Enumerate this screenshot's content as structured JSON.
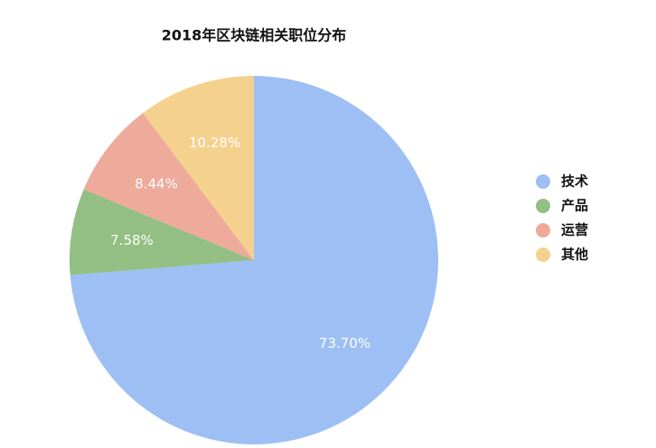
{
  "chart_data": {
    "type": "pie",
    "title": "2018年区块链相关职位分布",
    "categories": [
      "技术",
      "产品",
      "运营",
      "其他"
    ],
    "values": [
      73.7,
      7.58,
      8.44,
      10.28
    ],
    "value_labels": [
      "73.70%",
      "7.58%",
      "8.44%",
      "10.28%"
    ],
    "colors": [
      "#9dbff4",
      "#93bf85",
      "#eeaa9b",
      "#f5d18e"
    ],
    "legend": "right"
  }
}
